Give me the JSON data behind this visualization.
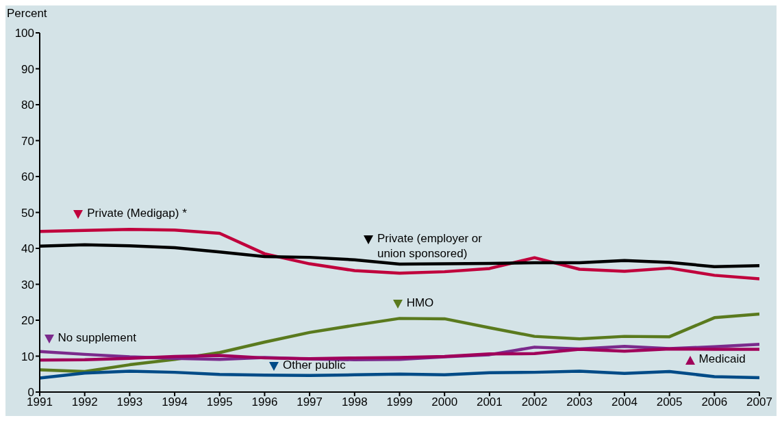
{
  "chart_data": {
    "type": "line",
    "ylabel": "Percent",
    "x": [
      1991,
      1992,
      1993,
      1994,
      1995,
      1996,
      1997,
      1998,
      1999,
      2000,
      2001,
      2002,
      2003,
      2004,
      2005,
      2006,
      2007
    ],
    "xlim": [
      1991,
      2007
    ],
    "xticks": [
      1991,
      1992,
      1993,
      1994,
      1995,
      1996,
      1997,
      1998,
      1999,
      2000,
      2001,
      2002,
      2003,
      2004,
      2005,
      2006,
      2007
    ],
    "ylim": [
      0,
      100
    ],
    "yticks": [
      0,
      10,
      20,
      30,
      40,
      50,
      60,
      70,
      80,
      90,
      100
    ],
    "grid": false,
    "legend": "left",
    "marker": "none",
    "line_style": "solid",
    "series": [
      {
        "name": "Private (Medigap) *",
        "color": "#c0003c",
        "values": [
          44.7,
          45.0,
          45.3,
          45.1,
          44.2,
          38.5,
          35.7,
          33.8,
          33.1,
          33.5,
          34.4,
          37.4,
          34.2,
          33.6,
          34.5,
          32.5,
          31.5
        ]
      },
      {
        "name": "Private (employer or union sponsored)",
        "color": "#000000",
        "values": [
          40.6,
          41.0,
          40.7,
          40.2,
          39.0,
          37.7,
          37.5,
          36.8,
          35.6,
          35.7,
          35.8,
          36.0,
          36.0,
          36.6,
          36.1,
          34.9,
          35.2
        ]
      },
      {
        "name": "HMO",
        "color": "#5a7a1e",
        "values": [
          6.2,
          5.7,
          7.6,
          9.1,
          11.0,
          13.9,
          16.6,
          18.6,
          20.5,
          20.4,
          17.9,
          15.5,
          14.8,
          15.5,
          15.4,
          20.7,
          21.7
        ]
      },
      {
        "name": "No supplement",
        "color": "#7b2a8c",
        "values": [
          11.3,
          10.5,
          9.8,
          9.4,
          9.1,
          9.6,
          9.2,
          9.0,
          9.1,
          9.8,
          10.4,
          12.5,
          12.0,
          12.7,
          12.1,
          12.6,
          13.3
        ]
      },
      {
        "name": "Medicaid",
        "color": "#a0005a",
        "values": [
          8.9,
          9.0,
          9.4,
          9.9,
          10.2,
          9.5,
          9.3,
          9.5,
          9.6,
          9.9,
          10.6,
          10.7,
          11.9,
          11.4,
          12.0,
          11.9,
          11.9
        ]
      },
      {
        "name": "Other public",
        "color": "#004b87",
        "values": [
          3.9,
          5.3,
          5.8,
          5.5,
          4.9,
          4.7,
          4.6,
          4.8,
          5.0,
          4.8,
          5.4,
          5.5,
          5.8,
          5.2,
          5.7,
          4.3,
          4.0
        ]
      }
    ]
  }
}
